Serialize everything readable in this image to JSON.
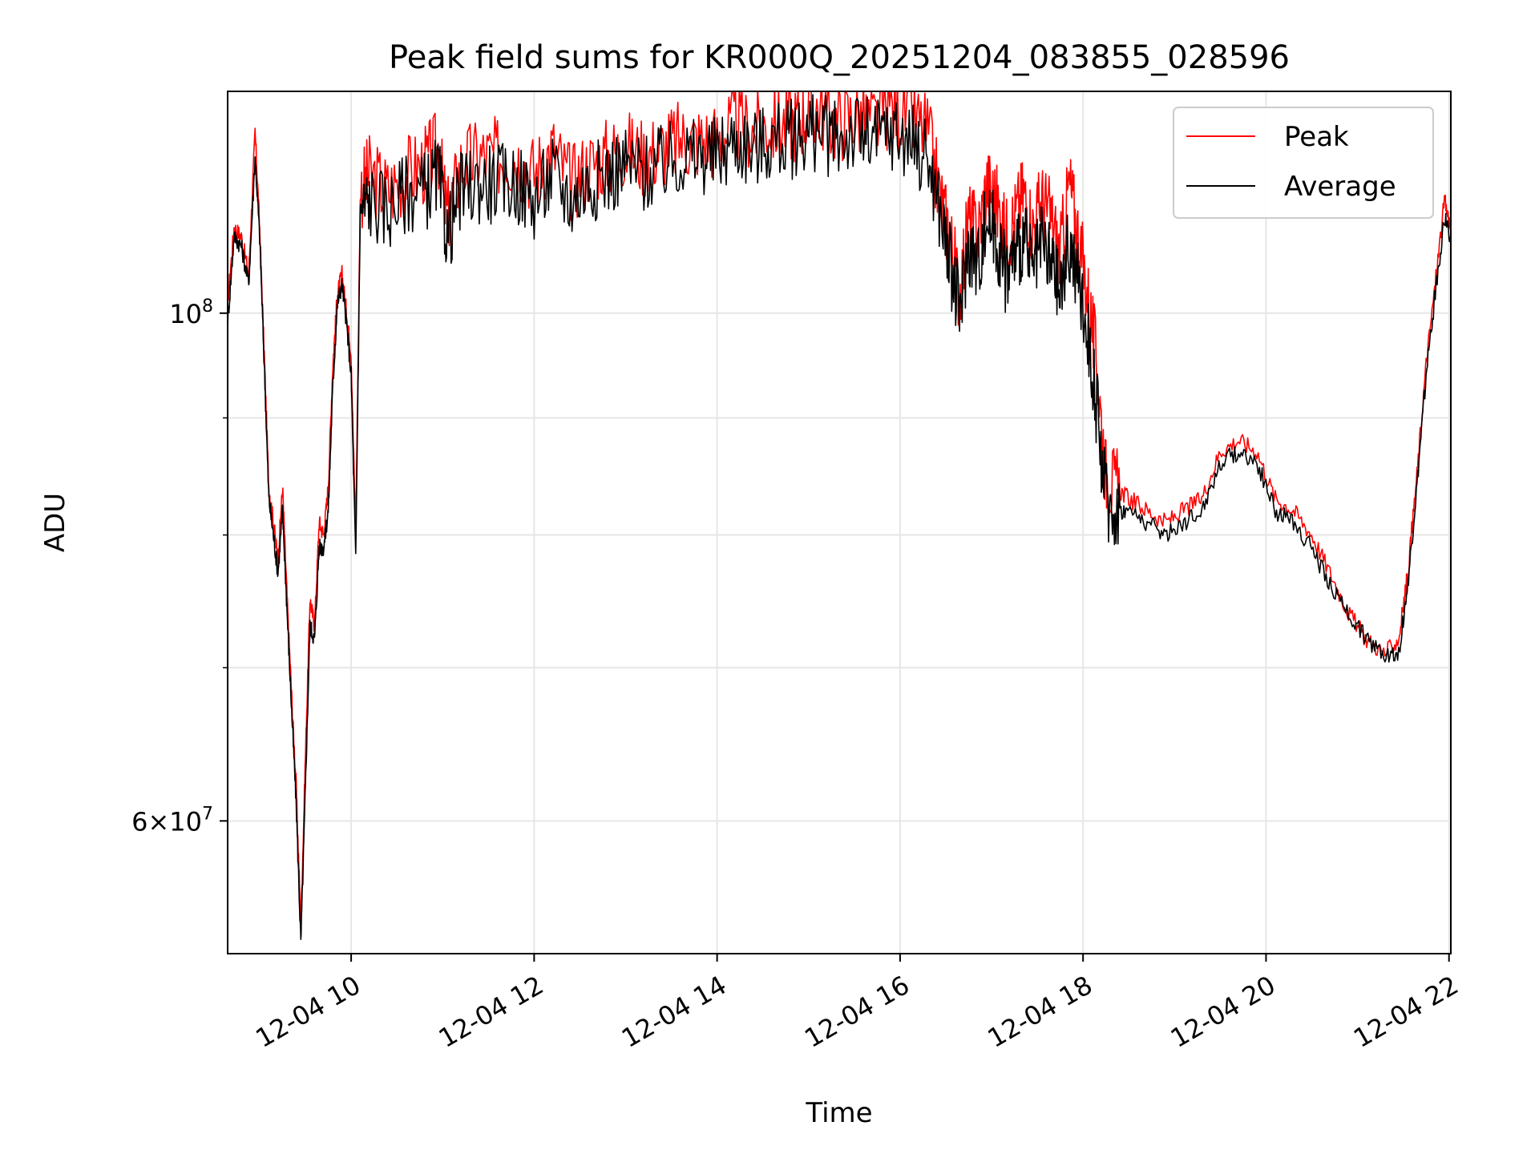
{
  "chart_data": {
    "type": "line",
    "title": "Peak field sums for KR000Q_20251204_083855_028596",
    "xlabel": "Time",
    "ylabel": "ADU",
    "yscale": "log",
    "xlim": [
      8.65,
      22.02
    ],
    "ylim": [
      52500000,
      125000000
    ],
    "grid": true,
    "legend_position": "top-right",
    "x_ticks": [
      {
        "x": 10,
        "label": "12-04 10"
      },
      {
        "x": 12,
        "label": "12-04 12"
      },
      {
        "x": 14,
        "label": "12-04 14"
      },
      {
        "x": 16,
        "label": "12-04 16"
      },
      {
        "x": 18,
        "label": "12-04 18"
      },
      {
        "x": 20,
        "label": "12-04 20"
      },
      {
        "x": 22,
        "label": "12-04 22"
      }
    ],
    "y_major_ticks": [
      {
        "y": 60000000,
        "mantissa": "6",
        "exponent": "7",
        "style": "times"
      },
      {
        "y": 100000000,
        "mantissa": "10",
        "exponent": "8",
        "style": "power"
      }
    ],
    "y_minor_ticks": [
      70000000,
      80000000,
      90000000
    ],
    "series": [
      {
        "name": "Peak",
        "color": "#ff0000",
        "x": [
          8.65,
          8.72,
          8.8,
          8.88,
          8.95,
          9.0,
          9.05,
          9.1,
          9.15,
          9.2,
          9.25,
          9.3,
          9.35,
          9.4,
          9.45,
          9.5,
          9.55,
          9.6,
          9.65,
          9.7,
          9.75,
          9.8,
          9.85,
          9.9,
          9.95,
          10.0,
          10.05,
          10.1,
          10.2,
          10.4,
          10.6,
          10.8,
          10.95,
          11.05,
          11.2,
          11.4,
          11.6,
          11.8,
          12.0,
          12.2,
          12.4,
          12.6,
          12.8,
          13.0,
          13.2,
          13.4,
          13.6,
          13.8,
          14.0,
          14.2,
          14.4,
          14.6,
          14.8,
          14.95,
          15.1,
          15.3,
          15.5,
          15.7,
          15.9,
          16.1,
          16.3,
          16.45,
          16.55,
          16.65,
          16.75,
          16.85,
          16.95,
          17.05,
          17.15,
          17.25,
          17.35,
          17.45,
          17.55,
          17.65,
          17.75,
          17.85,
          17.95,
          18.05,
          18.15,
          18.25,
          18.35,
          18.5,
          18.7,
          18.9,
          19.1,
          19.3,
          19.5,
          19.7,
          19.9,
          20.1,
          20.3,
          20.5,
          20.7,
          20.9,
          21.1,
          21.3,
          21.45,
          21.55,
          21.65,
          21.75,
          21.85,
          21.95,
          22.02
        ],
        "y": [
          101000000,
          109000000,
          108000000,
          104000000,
          120000000,
          109000000,
          96000000,
          84000000,
          81000000,
          78000000,
          84000000,
          75000000,
          68000000,
          62000000,
          54000000,
          64000000,
          75000000,
          73000000,
          81000000,
          80000000,
          84000000,
          95000000,
          102000000,
          104000000,
          100000000,
          96000000,
          80000000,
          113000000,
          115000000,
          113000000,
          115000000,
          116000000,
          118000000,
          110000000,
          116000000,
          117000000,
          117000000,
          117000000,
          115000000,
          118000000,
          114000000,
          116000000,
          117000000,
          118000000,
          117000000,
          118000000,
          119000000,
          119000000,
          119000000,
          121000000,
          120000000,
          121000000,
          121000000,
          122000000,
          123000000,
          121000000,
          122000000,
          121000000,
          123000000,
          122000000,
          120000000,
          112000000,
          108000000,
          102000000,
          110000000,
          108000000,
          114000000,
          112000000,
          108000000,
          110000000,
          113000000,
          109000000,
          112000000,
          110000000,
          106000000,
          114000000,
          108000000,
          102000000,
          95000000,
          85000000,
          84000000,
          83000000,
          82000000,
          81000000,
          82000000,
          83000000,
          87000000,
          88000000,
          87000000,
          83000000,
          82000000,
          80000000,
          77000000,
          74000000,
          72000000,
          71000000,
          72000000,
          77000000,
          85000000,
          95000000,
          103000000,
          112000000,
          109000000
        ]
      },
      {
        "name": "Average",
        "color": "#000000",
        "x": [
          8.65,
          8.72,
          8.8,
          8.88,
          8.95,
          9.0,
          9.05,
          9.1,
          9.15,
          9.2,
          9.25,
          9.3,
          9.35,
          9.4,
          9.45,
          9.5,
          9.55,
          9.6,
          9.65,
          9.7,
          9.75,
          9.8,
          9.85,
          9.9,
          9.95,
          10.0,
          10.05,
          10.1,
          10.2,
          10.4,
          10.6,
          10.8,
          10.95,
          11.05,
          11.2,
          11.4,
          11.6,
          11.8,
          12.0,
          12.2,
          12.4,
          12.6,
          12.8,
          13.0,
          13.2,
          13.4,
          13.6,
          13.8,
          14.0,
          14.2,
          14.4,
          14.6,
          14.8,
          14.95,
          15.1,
          15.3,
          15.5,
          15.7,
          15.9,
          16.1,
          16.3,
          16.45,
          16.55,
          16.65,
          16.75,
          16.85,
          16.95,
          17.05,
          17.15,
          17.25,
          17.35,
          17.45,
          17.55,
          17.65,
          17.75,
          17.85,
          17.95,
          18.05,
          18.15,
          18.25,
          18.35,
          18.5,
          18.7,
          18.9,
          19.1,
          19.3,
          19.5,
          19.7,
          19.9,
          20.1,
          20.3,
          20.5,
          20.7,
          20.9,
          21.1,
          21.3,
          21.45,
          21.55,
          21.65,
          21.75,
          21.85,
          21.95,
          22.02
        ],
        "y": [
          99000000,
          108000000,
          107000000,
          103000000,
          117000000,
          108000000,
          95000000,
          83000000,
          80000000,
          77000000,
          82000000,
          74000000,
          67000000,
          61000000,
          53000000,
          62000000,
          73000000,
          72000000,
          79000000,
          79000000,
          82000000,
          93000000,
          101000000,
          103000000,
          99000000,
          94000000,
          78000000,
          111000000,
          112000000,
          111000000,
          113000000,
          113000000,
          115000000,
          108000000,
          113000000,
          114000000,
          114000000,
          114000000,
          112000000,
          115000000,
          112000000,
          114000000,
          115000000,
          116000000,
          115000000,
          116000000,
          117000000,
          117000000,
          117000000,
          119000000,
          118000000,
          119000000,
          119000000,
          120000000,
          120000000,
          119000000,
          120000000,
          119000000,
          120000000,
          119000000,
          117000000,
          110000000,
          105000000,
          100000000,
          107000000,
          105000000,
          110000000,
          108000000,
          104000000,
          106000000,
          108000000,
          104000000,
          107000000,
          105000000,
          102000000,
          107000000,
          103000000,
          98000000,
          91000000,
          83000000,
          82000000,
          82000000,
          81000000,
          80000000,
          81000000,
          82000000,
          86000000,
          87000000,
          86000000,
          82000000,
          81000000,
          79000000,
          76000000,
          74000000,
          72000000,
          71000000,
          71000000,
          76000000,
          84000000,
          94000000,
          102000000,
          110000000,
          108000000
        ]
      }
    ]
  }
}
